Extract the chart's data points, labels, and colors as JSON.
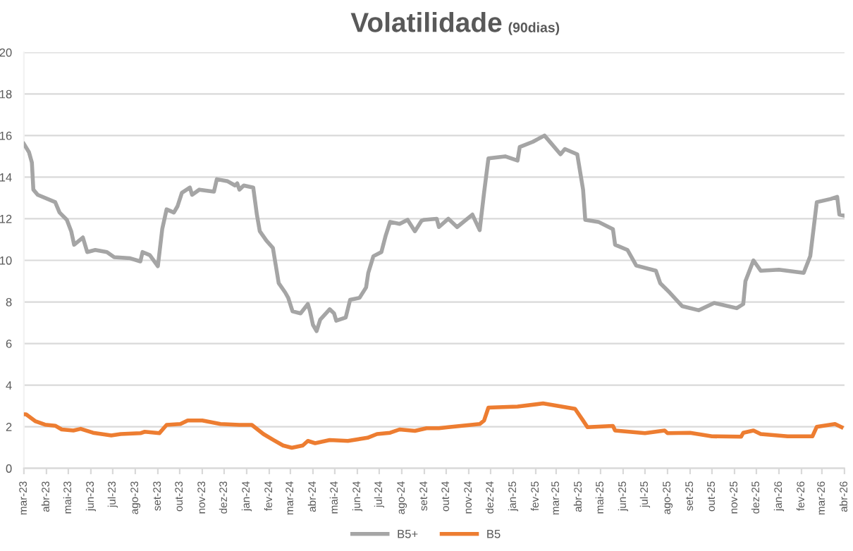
{
  "chart_data": {
    "type": "line",
    "title": "Volatilidade",
    "subtitle": "(90dias)",
    "xlim": [
      "2023-03-01",
      "2026-04-01"
    ],
    "ylim": [
      0,
      20
    ],
    "yticks": [
      0,
      2,
      4,
      6,
      8,
      10,
      12,
      14,
      16,
      18,
      20
    ],
    "xticks": [
      {
        "value": "2023-03-01",
        "label": "mar-23"
      },
      {
        "value": "2023-04-01",
        "label": "abr-23"
      },
      {
        "value": "2023-05-01",
        "label": "mai-23"
      },
      {
        "value": "2023-06-01",
        "label": "jun-23"
      },
      {
        "value": "2023-07-01",
        "label": "jul-23"
      },
      {
        "value": "2023-08-01",
        "label": "ago-23"
      },
      {
        "value": "2023-09-01",
        "label": "set-23"
      },
      {
        "value": "2023-10-01",
        "label": "out-23"
      },
      {
        "value": "2023-11-01",
        "label": "nov-23"
      },
      {
        "value": "2023-12-01",
        "label": "dez-23"
      },
      {
        "value": "2024-01-01",
        "label": "jan-24"
      },
      {
        "value": "2024-02-01",
        "label": "fev-24"
      },
      {
        "value": "2024-03-01",
        "label": "mar-24"
      },
      {
        "value": "2024-04-01",
        "label": "abr-24"
      },
      {
        "value": "2024-05-01",
        "label": "mai-24"
      },
      {
        "value": "2024-06-01",
        "label": "jun-24"
      },
      {
        "value": "2024-07-01",
        "label": "jul-24"
      },
      {
        "value": "2024-08-01",
        "label": "ago-24"
      },
      {
        "value": "2024-09-01",
        "label": "set-24"
      },
      {
        "value": "2024-10-01",
        "label": "out-24"
      },
      {
        "value": "2024-11-01",
        "label": "nov-24"
      },
      {
        "value": "2024-12-01",
        "label": "dez-24"
      },
      {
        "value": "2025-01-01",
        "label": "jan-25"
      },
      {
        "value": "2025-02-01",
        "label": "fev-25"
      },
      {
        "value": "2025-03-01",
        "label": "mar-25"
      },
      {
        "value": "2025-04-01",
        "label": "abr-25"
      },
      {
        "value": "2025-05-01",
        "label": "mai-25"
      },
      {
        "value": "2025-06-01",
        "label": "jun-25"
      },
      {
        "value": "2025-07-01",
        "label": "jul-25"
      },
      {
        "value": "2025-08-01",
        "label": "ago-25"
      },
      {
        "value": "2025-09-01",
        "label": "set-25"
      },
      {
        "value": "2025-10-01",
        "label": "out-25"
      },
      {
        "value": "2025-11-01",
        "label": "nov-25"
      },
      {
        "value": "2025-12-01",
        "label": "dez-25"
      },
      {
        "value": "2026-01-01",
        "label": "jan-26"
      },
      {
        "value": "2026-02-01",
        "label": "fev-26"
      },
      {
        "value": "2026-03-01",
        "label": "mar-26"
      },
      {
        "value": "2026-04-01",
        "label": "abr-26"
      }
    ],
    "grid": "y",
    "legend": "bottom",
    "marker": "none",
    "line_style": "solid",
    "series": [
      {
        "name": "B5+",
        "color": "#a5a5a5",
        "x": [
          "2023-03-01",
          "2023-03-08",
          "2023-03-12",
          "2023-03-14",
          "2023-03-20",
          "2023-04-13",
          "2023-04-19",
          "2023-04-29",
          "2023-05-05",
          "2023-05-09",
          "2023-05-21",
          "2023-05-27",
          "2023-06-07",
          "2023-06-23",
          "2023-07-03",
          "2023-07-25",
          "2023-08-08",
          "2023-08-11",
          "2023-08-21",
          "2023-09-01",
          "2023-09-07",
          "2023-09-13",
          "2023-09-23",
          "2023-09-28",
          "2023-10-04",
          "2023-10-15",
          "2023-10-18",
          "2023-10-28",
          "2023-11-17",
          "2023-11-21",
          "2023-12-06",
          "2023-12-16",
          "2023-12-19",
          "2023-12-22",
          "2023-12-28",
          "2024-01-10",
          "2024-01-15",
          "2024-01-19",
          "2024-01-28",
          "2024-02-06",
          "2024-02-10",
          "2024-02-14",
          "2024-02-23",
          "2024-02-27",
          "2024-03-04",
          "2024-03-15",
          "2024-03-25",
          "2024-03-28",
          "2024-04-01",
          "2024-04-06",
          "2024-04-11",
          "2024-04-24",
          "2024-04-30",
          "2024-05-03",
          "2024-05-16",
          "2024-05-22",
          "2024-06-04",
          "2024-06-13",
          "2024-06-16",
          "2024-06-23",
          "2024-07-04",
          "2024-07-10",
          "2024-07-16",
          "2024-07-29",
          "2024-08-09",
          "2024-08-19",
          "2024-08-28",
          "2024-09-01",
          "2024-09-18",
          "2024-09-21",
          "2024-10-04",
          "2024-10-16",
          "2024-11-06",
          "2024-11-16",
          "2024-11-22",
          "2024-11-28",
          "2024-12-21",
          "2025-01-07",
          "2025-01-10",
          "2025-01-28",
          "2025-02-13",
          "2025-02-24",
          "2025-03-07",
          "2025-03-13",
          "2025-03-30",
          "2025-04-07",
          "2025-04-10",
          "2025-04-28",
          "2025-05-18",
          "2025-05-21",
          "2025-06-07",
          "2025-06-19",
          "2025-07-16",
          "2025-07-22",
          "2025-08-04",
          "2025-08-21",
          "2025-09-13",
          "2025-10-04",
          "2025-11-04",
          "2025-11-13",
          "2025-11-16",
          "2025-11-27",
          "2025-12-07",
          "2026-01-01",
          "2026-02-04",
          "2026-02-13",
          "2026-02-22",
          "2026-03-13",
          "2026-03-22",
          "2026-03-25",
          "2026-04-01"
        ],
        "values": [
          15.6,
          15.2,
          14.7,
          13.4,
          13.15,
          12.8,
          12.3,
          11.95,
          11.4,
          10.75,
          11.1,
          10.4,
          10.5,
          10.4,
          10.15,
          10.1,
          9.95,
          10.4,
          10.25,
          9.72,
          11.5,
          12.45,
          12.3,
          12.6,
          13.25,
          13.5,
          13.15,
          13.4,
          13.3,
          13.9,
          13.8,
          13.6,
          13.7,
          13.4,
          13.6,
          13.5,
          12.2,
          11.4,
          10.95,
          10.6,
          9.75,
          8.9,
          8.45,
          8.2,
          7.55,
          7.45,
          7.9,
          7.55,
          6.9,
          6.6,
          7.15,
          7.65,
          7.45,
          7.1,
          7.25,
          8.1,
          8.2,
          8.7,
          9.4,
          10.2,
          10.4,
          11.2,
          11.85,
          11.75,
          11.95,
          11.4,
          11.9,
          11.95,
          12.0,
          11.6,
          12.0,
          11.6,
          12.2,
          11.45,
          13.25,
          14.9,
          15.0,
          14.8,
          15.45,
          15.7,
          16.0,
          15.55,
          15.1,
          15.35,
          15.1,
          13.4,
          11.95,
          11.85,
          11.5,
          10.75,
          10.5,
          9.75,
          9.5,
          8.9,
          8.45,
          7.8,
          7.6,
          7.95,
          7.7,
          7.9,
          9.0,
          10.0,
          9.5,
          9.55,
          9.4,
          10.2,
          12.8,
          12.95,
          13.05,
          12.2,
          12.15
        ]
      },
      {
        "name": "B5",
        "color": "#ed7d31",
        "x": [
          "2023-03-01",
          "2023-03-04",
          "2023-03-17",
          "2023-03-30",
          "2023-04-13",
          "2023-04-22",
          "2023-05-08",
          "2023-05-18",
          "2023-06-04",
          "2023-06-29",
          "2023-07-12",
          "2023-08-08",
          "2023-08-14",
          "2023-09-03",
          "2023-09-13",
          "2023-10-02",
          "2023-10-12",
          "2023-11-01",
          "2023-11-26",
          "2023-12-22",
          "2024-01-08",
          "2024-01-24",
          "2024-02-07",
          "2024-02-20",
          "2024-03-03",
          "2024-03-18",
          "2024-03-25",
          "2024-04-04",
          "2024-04-24",
          "2024-05-19",
          "2024-06-15",
          "2024-06-28",
          "2024-07-16",
          "2024-07-29",
          "2024-08-19",
          "2024-09-04",
          "2024-09-21",
          "2024-10-04",
          "2024-11-16",
          "2024-11-22",
          "2024-11-28",
          "2025-01-07",
          "2025-02-11",
          "2025-03-27",
          "2025-04-07",
          "2025-04-13",
          "2025-05-18",
          "2025-05-21",
          "2025-07-01",
          "2025-07-28",
          "2025-08-01",
          "2025-09-01",
          "2025-10-01",
          "2025-11-10",
          "2025-11-13",
          "2025-11-27",
          "2025-12-07",
          "2026-01-13",
          "2026-02-16",
          "2026-02-22",
          "2026-03-19",
          "2026-03-28"
        ],
        "values": [
          2.6,
          2.6,
          2.26,
          2.1,
          2.05,
          1.87,
          1.82,
          1.9,
          1.71,
          1.58,
          1.65,
          1.69,
          1.76,
          1.69,
          2.09,
          2.13,
          2.3,
          2.3,
          2.13,
          2.09,
          2.09,
          1.65,
          1.36,
          1.1,
          0.99,
          1.1,
          1.32,
          1.21,
          1.36,
          1.32,
          1.47,
          1.65,
          1.71,
          1.87,
          1.8,
          1.93,
          1.93,
          1.98,
          2.13,
          2.3,
          2.92,
          2.97,
          3.12,
          2.86,
          2.3,
          1.98,
          2.04,
          1.82,
          1.69,
          1.82,
          1.69,
          1.71,
          1.54,
          1.52,
          1.71,
          1.82,
          1.65,
          1.54,
          1.54,
          2.0,
          2.13,
          1.98
        ]
      }
    ]
  }
}
